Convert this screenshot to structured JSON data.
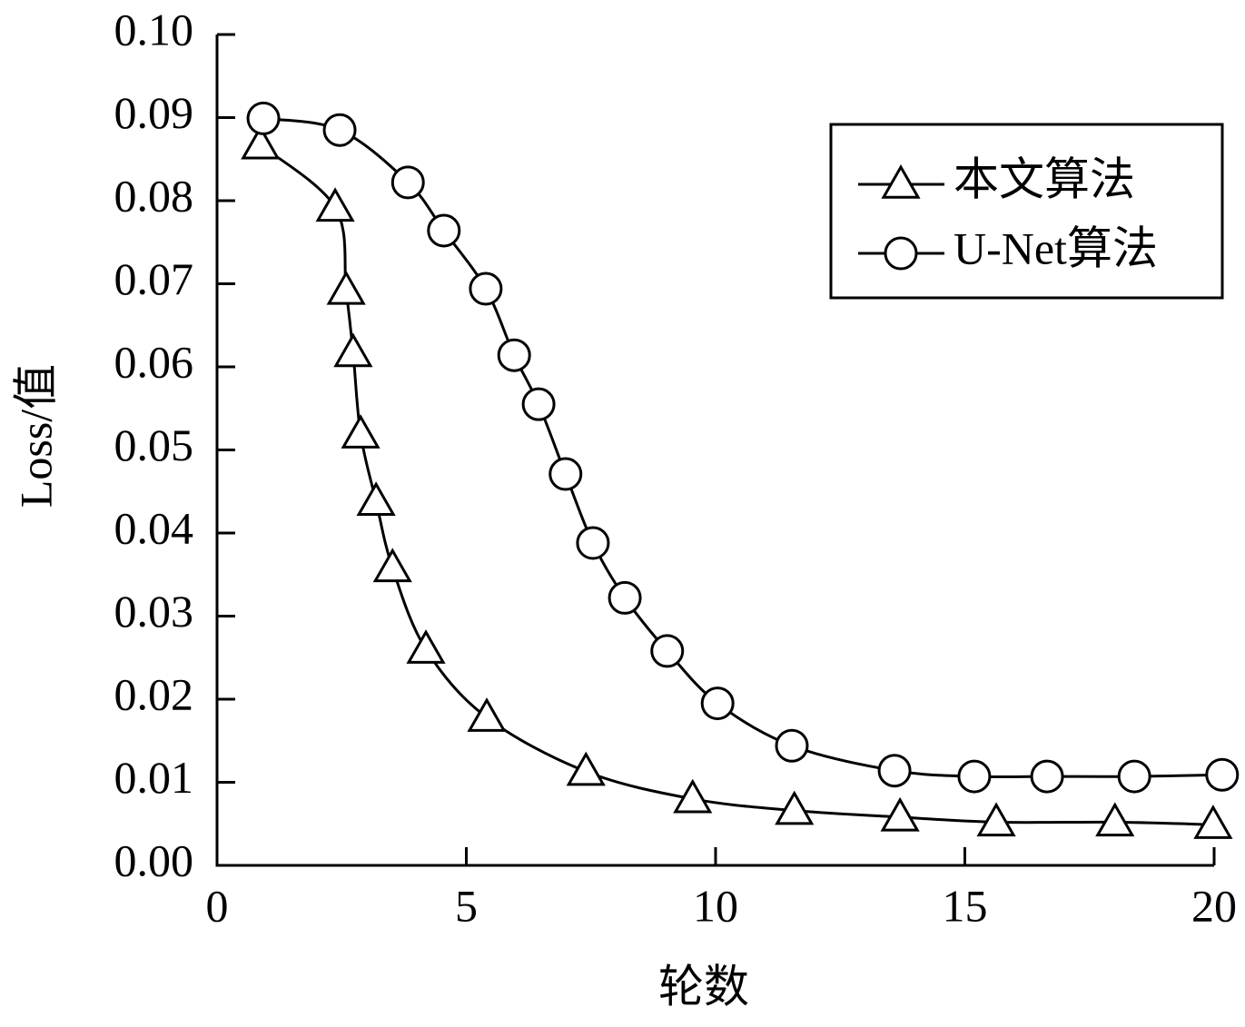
{
  "chart_data": {
    "type": "line",
    "xlabel": "轮数",
    "ylabel": "Loss/值",
    "xlim": [
      0,
      20
    ],
    "xticks": [
      0,
      5,
      10,
      15,
      20
    ],
    "ylim": [
      0,
      0.1
    ],
    "yticks": [
      {
        "value": 0,
        "label": "0.00"
      },
      {
        "value": 0.01,
        "label": "0.01"
      },
      {
        "value": 0.02,
        "label": "0.02"
      },
      {
        "value": 0.03,
        "label": "0.03"
      },
      {
        "value": 0.04,
        "label": "0.04"
      },
      {
        "value": 0.05,
        "label": "0.05"
      },
      {
        "value": 0.06,
        "label": "0.06"
      },
      {
        "value": 0.07,
        "label": "0.07"
      },
      {
        "value": 0.08,
        "label": "0.08"
      },
      {
        "value": 0.09,
        "label": "0.09"
      },
      {
        "value": 0.1,
        "label": "0.10"
      }
    ],
    "legend": "upper right",
    "series": [
      {
        "name": "本文算法",
        "color": "#000000",
        "marker": "triangle",
        "x": [
          0.87,
          2.37,
          2.59,
          2.73,
          2.88,
          3.19,
          3.52,
          4.19,
          5.41,
          7.4,
          9.54,
          11.58,
          13.7,
          15.63,
          18.01,
          19.98
        ],
        "values": [
          0.0867,
          0.0792,
          0.0692,
          0.0617,
          0.0519,
          0.0438,
          0.0358,
          0.026,
          0.0178,
          0.0113,
          0.008,
          0.0066,
          0.0058,
          0.0052,
          0.0052,
          0.0049
        ]
      },
      {
        "name": "U-Net算法",
        "color": "#000000",
        "marker": "circle",
        "x": [
          0.93,
          2.46,
          3.83,
          4.55,
          5.39,
          5.96,
          6.45,
          6.99,
          7.54,
          8.18,
          9.03,
          10.04,
          11.53,
          13.59,
          15.19,
          16.65,
          18.4,
          20.16
        ],
        "values": [
          0.0899,
          0.0885,
          0.0822,
          0.0764,
          0.0694,
          0.0614,
          0.0555,
          0.0471,
          0.0388,
          0.0322,
          0.0258,
          0.0195,
          0.0144,
          0.0114,
          0.0107,
          0.0107,
          0.0107,
          0.0109
        ]
      }
    ]
  }
}
